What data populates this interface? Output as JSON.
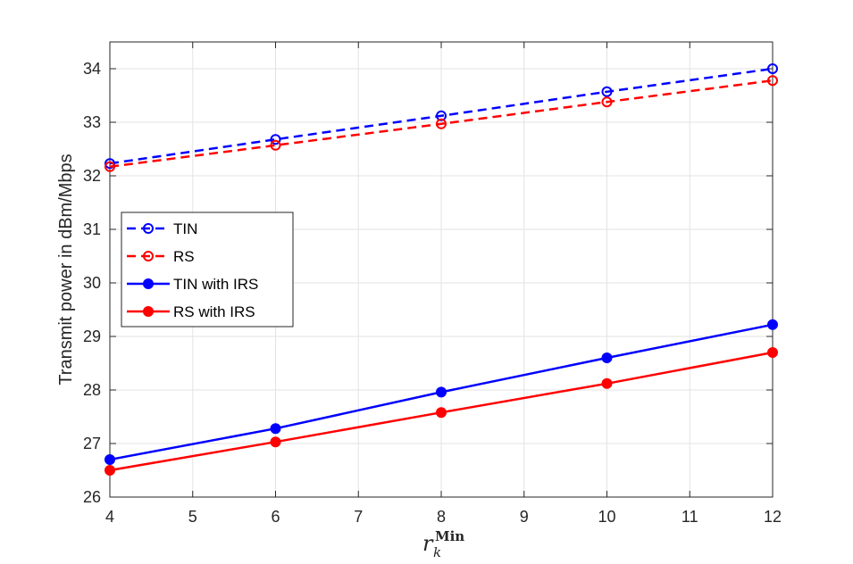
{
  "chart_data": {
    "type": "line",
    "title": "",
    "xlabel": {
      "main": "r",
      "sub": "k",
      "sup": "Min"
    },
    "ylabel": "Transmit power in dBm/Mbps",
    "xlim": [
      4,
      12
    ],
    "ylim": [
      26,
      34.5
    ],
    "xticks": [
      4,
      5,
      6,
      7,
      8,
      9,
      10,
      11,
      12
    ],
    "yticks": [
      26,
      27,
      28,
      29,
      30,
      31,
      32,
      33,
      34
    ],
    "grid": true,
    "legend_position": "center-left",
    "x": [
      4,
      6,
      8,
      10,
      12
    ],
    "series": [
      {
        "name": "TIN",
        "color": "#0000ff",
        "line": "dashed",
        "marker": "open-circle",
        "values": [
          32.23,
          32.68,
          33.12,
          33.57,
          34.0
        ]
      },
      {
        "name": "RS",
        "color": "#ff0000",
        "line": "dashed",
        "marker": "open-circle",
        "values": [
          32.17,
          32.57,
          32.97,
          33.38,
          33.78
        ]
      },
      {
        "name": "TIN with IRS",
        "color": "#0000ff",
        "line": "solid",
        "marker": "filled-circle",
        "values": [
          26.7,
          27.28,
          27.96,
          28.6,
          29.22
        ]
      },
      {
        "name": "RS with IRS",
        "color": "#ff0000",
        "line": "solid",
        "marker": "filled-circle",
        "values": [
          26.5,
          27.03,
          27.58,
          28.12,
          28.7
        ]
      }
    ]
  }
}
